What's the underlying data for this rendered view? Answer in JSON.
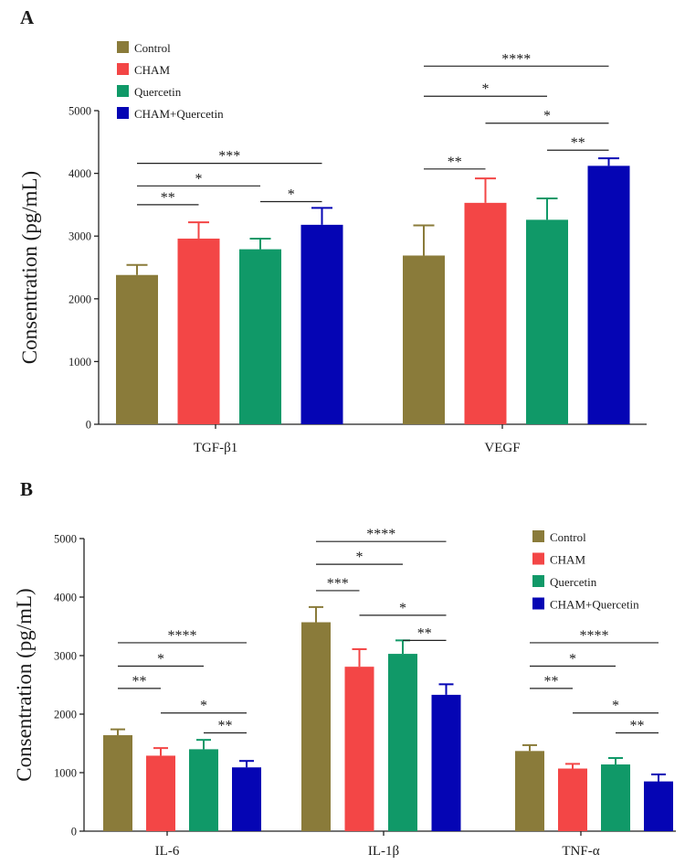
{
  "chart_data": [
    {
      "panel": "A",
      "type": "bar",
      "ylabel": "Consentration (pg/mL)",
      "ylim": [
        0,
        5000
      ],
      "yticks": [
        0,
        1000,
        2000,
        3000,
        4000,
        5000
      ],
      "legend_position": "top-left",
      "categories": [
        "TGF-β1",
        "VEGF"
      ],
      "series": [
        {
          "name": "Control",
          "color": "#8a7b3a",
          "values": [
            2380,
            2690
          ],
          "errors": [
            160,
            480
          ]
        },
        {
          "name": "CHAM",
          "color": "#f34646",
          "values": [
            2960,
            3530
          ],
          "errors": [
            260,
            390
          ]
        },
        {
          "name": "Quercetin",
          "color": "#109968",
          "values": [
            2790,
            3260
          ],
          "errors": [
            170,
            340
          ]
        },
        {
          "name": "CHAM+Quercetin",
          "color": "#0505b4",
          "values": [
            3180,
            4120
          ],
          "errors": [
            270,
            120
          ]
        }
      ],
      "significance": [
        {
          "category": 0,
          "from": 0,
          "to": 1,
          "value": 3500,
          "label": "**"
        },
        {
          "category": 0,
          "from": 0,
          "to": 2,
          "value": 3800,
          "label": "*"
        },
        {
          "category": 0,
          "from": 0,
          "to": 3,
          "value": 4160,
          "label": "***"
        },
        {
          "category": 0,
          "from": 2,
          "to": 3,
          "value": 3550,
          "label": "*"
        },
        {
          "category": 1,
          "from": 0,
          "to": 1,
          "value": 4070,
          "label": "**"
        },
        {
          "category": 1,
          "from": 0,
          "to": 2,
          "value": 5230,
          "label": "*"
        },
        {
          "category": 1,
          "from": 0,
          "to": 3,
          "value": 5710,
          "label": "****"
        },
        {
          "category": 1,
          "from": 1,
          "to": 3,
          "value": 4800,
          "label": "*"
        },
        {
          "category": 1,
          "from": 2,
          "to": 3,
          "value": 4370,
          "label": "**"
        }
      ]
    },
    {
      "panel": "B",
      "type": "bar",
      "ylabel": "Consentration (pg/mL)",
      "ylim": [
        0,
        5000
      ],
      "yticks": [
        0,
        1000,
        2000,
        3000,
        4000,
        5000
      ],
      "legend_position": "top-right",
      "categories": [
        "IL-6",
        "IL-1β",
        "TNF-α"
      ],
      "series": [
        {
          "name": "Control",
          "color": "#8a7b3a",
          "values": [
            1640,
            3570,
            1370
          ],
          "errors": [
            100,
            260,
            100
          ]
        },
        {
          "name": "CHAM",
          "color": "#f34646",
          "values": [
            1290,
            2810,
            1070
          ],
          "errors": [
            130,
            300,
            80
          ]
        },
        {
          "name": "Quercetin",
          "color": "#109968",
          "values": [
            1400,
            3030,
            1140
          ],
          "errors": [
            160,
            230,
            110
          ]
        },
        {
          "name": "CHAM+Quercetin",
          "color": "#0505b4",
          "values": [
            1090,
            2330,
            850
          ],
          "errors": [
            110,
            180,
            120
          ]
        }
      ],
      "significance": [
        {
          "category": 0,
          "from": 0,
          "to": 1,
          "value": 2440,
          "label": "**"
        },
        {
          "category": 0,
          "from": 0,
          "to": 2,
          "value": 2820,
          "label": "*"
        },
        {
          "category": 0,
          "from": 0,
          "to": 3,
          "value": 3220,
          "label": "****"
        },
        {
          "category": 0,
          "from": 1,
          "to": 3,
          "value": 2020,
          "label": "*"
        },
        {
          "category": 0,
          "from": 2,
          "to": 3,
          "value": 1680,
          "label": "**"
        },
        {
          "category": 1,
          "from": 0,
          "to": 1,
          "value": 4110,
          "label": "***"
        },
        {
          "category": 1,
          "from": 0,
          "to": 2,
          "value": 4560,
          "label": "*"
        },
        {
          "category": 1,
          "from": 0,
          "to": 3,
          "value": 4950,
          "label": "****"
        },
        {
          "category": 1,
          "from": 1,
          "to": 3,
          "value": 3690,
          "label": "*"
        },
        {
          "category": 1,
          "from": 2,
          "to": 3,
          "value": 3260,
          "label": "**"
        },
        {
          "category": 2,
          "from": 0,
          "to": 1,
          "value": 2440,
          "label": "**"
        },
        {
          "category": 2,
          "from": 0,
          "to": 2,
          "value": 2820,
          "label": "*"
        },
        {
          "category": 2,
          "from": 0,
          "to": 3,
          "value": 3220,
          "label": "****"
        },
        {
          "category": 2,
          "from": 1,
          "to": 3,
          "value": 2020,
          "label": "*"
        },
        {
          "category": 2,
          "from": 2,
          "to": 3,
          "value": 1680,
          "label": "**"
        }
      ]
    }
  ]
}
